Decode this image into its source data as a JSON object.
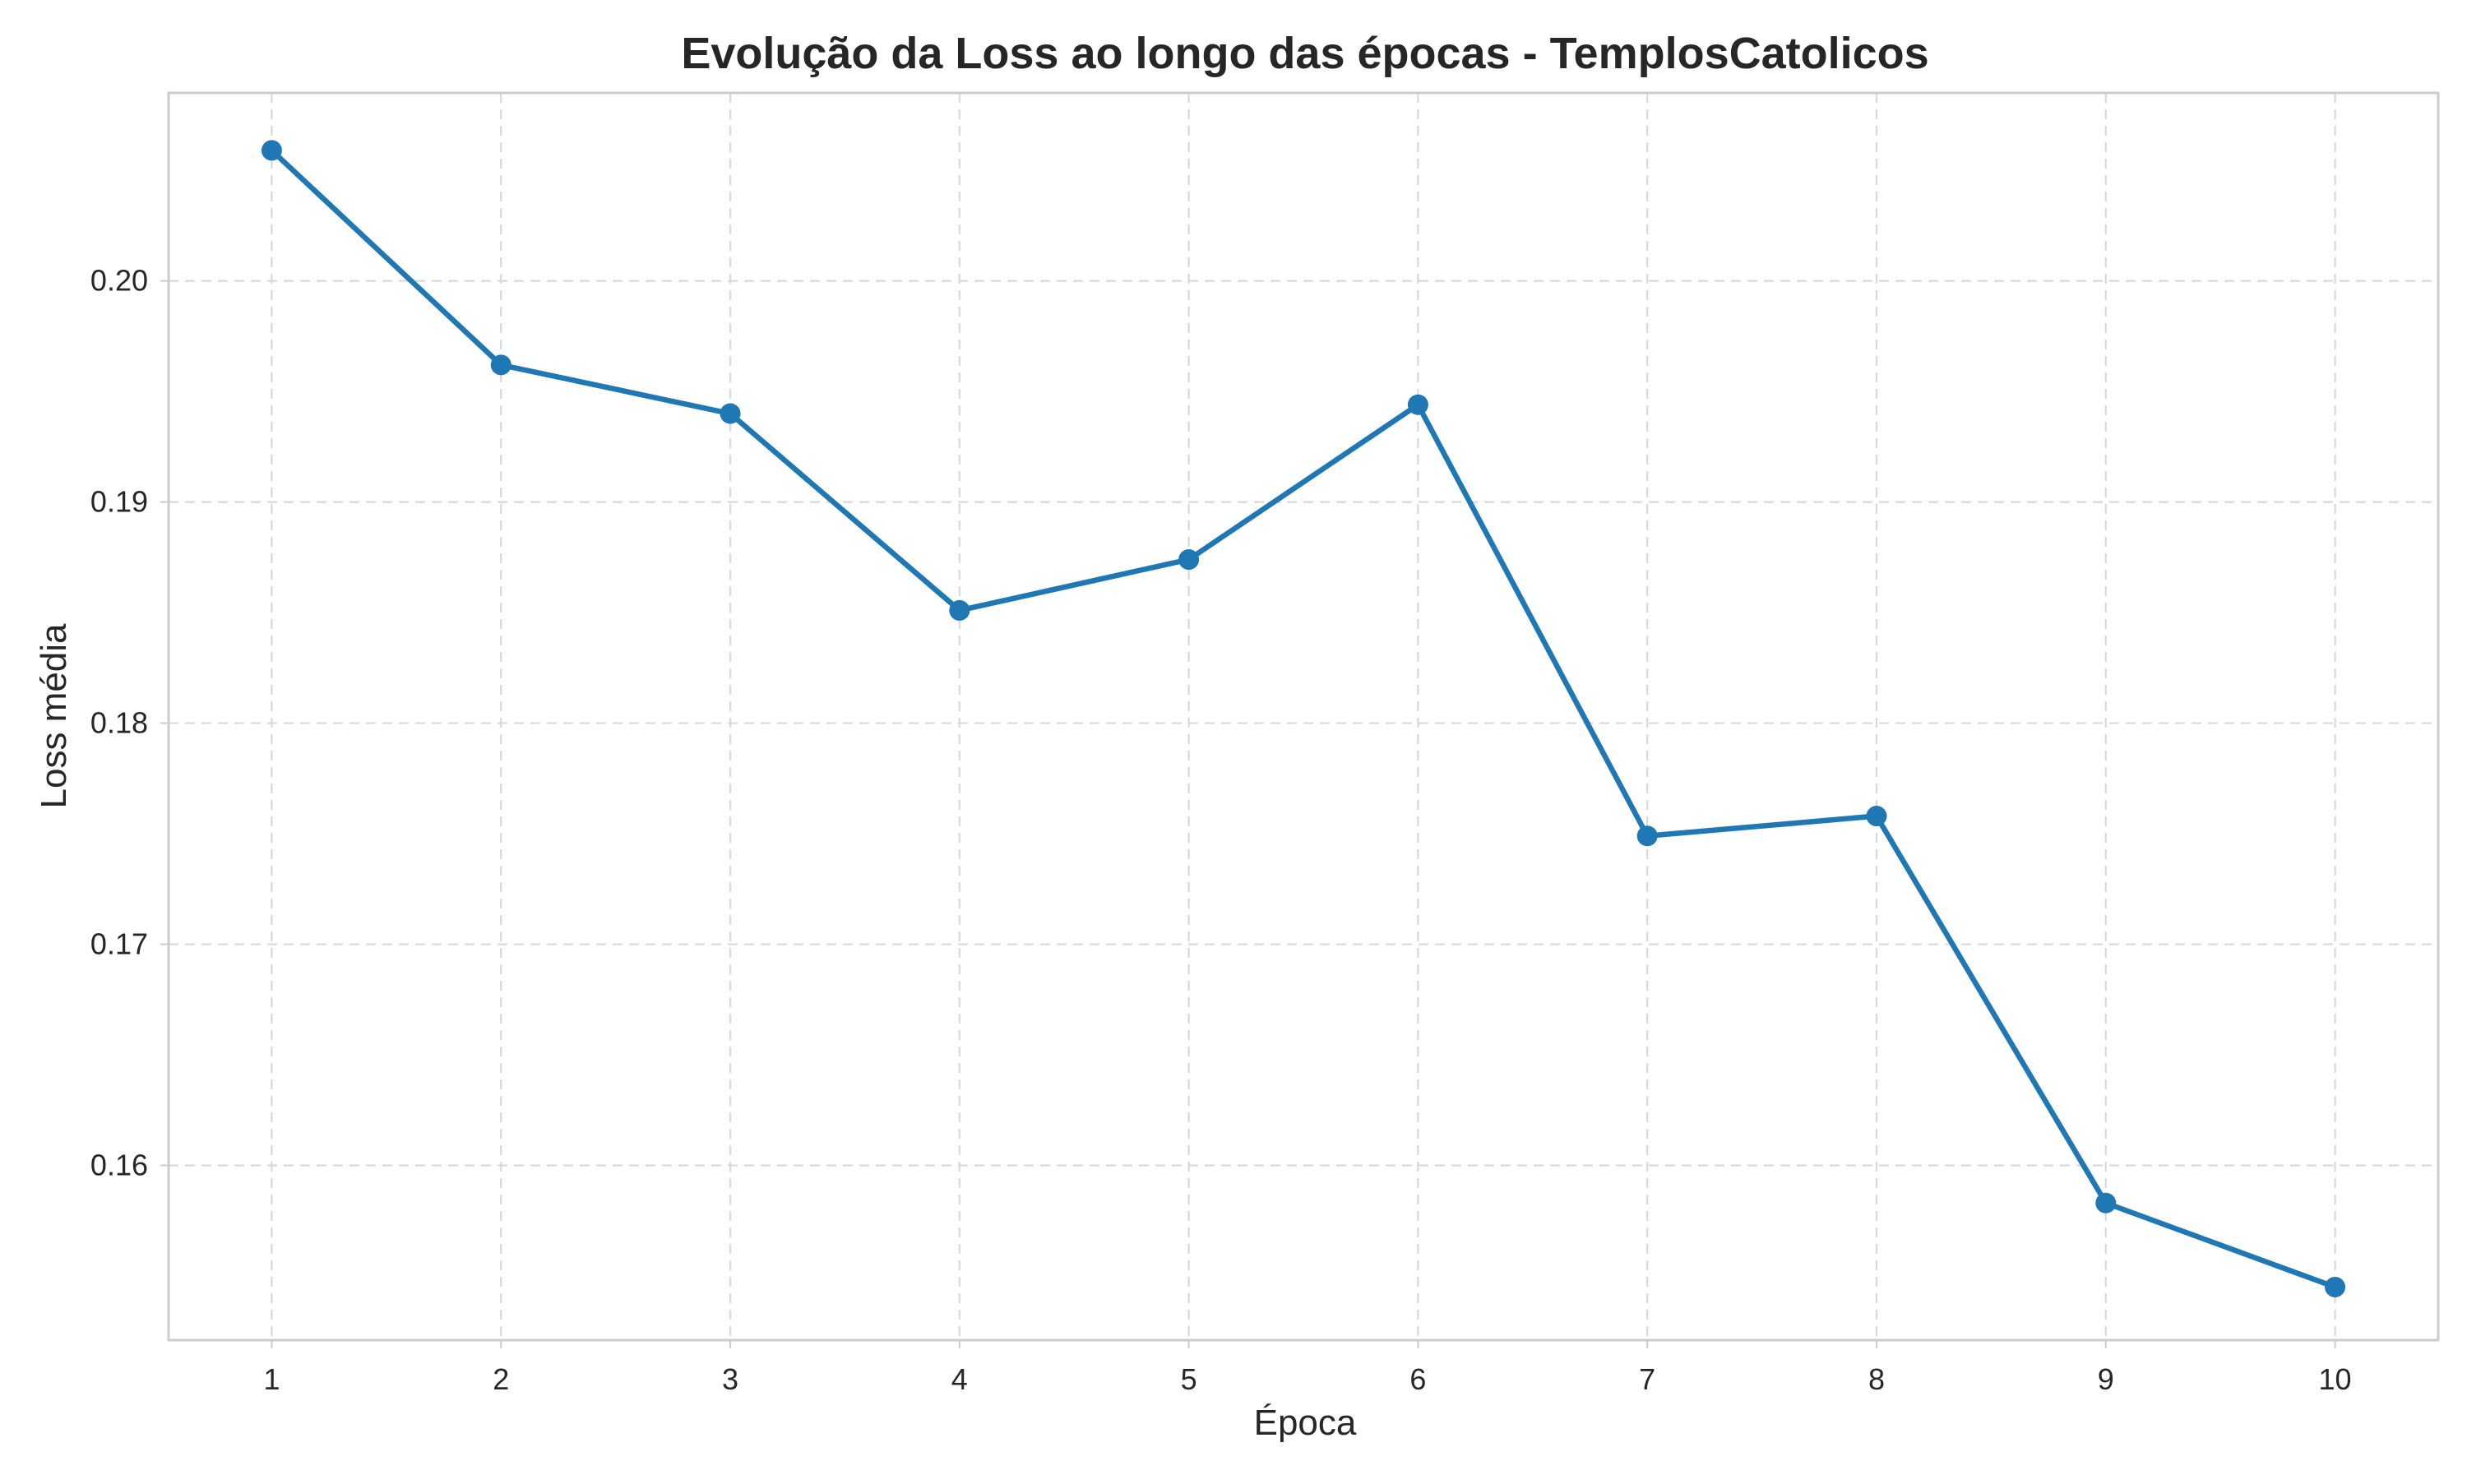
{
  "chart_data": {
    "type": "line",
    "title": "Evolução da Loss ao longo das épocas - TemplosCatolicos",
    "xlabel": "Época",
    "ylabel": "Loss média",
    "x": [
      1,
      2,
      3,
      4,
      5,
      6,
      7,
      8,
      9,
      10
    ],
    "series": [
      {
        "values": [
          0.2059,
          0.1962,
          0.194,
          0.1851,
          0.1874,
          0.1944,
          0.1749,
          0.1758,
          0.1583,
          0.1545
        ],
        "color": "#1f77b4",
        "marker": "circle"
      }
    ],
    "xticks": [
      "1",
      "2",
      "3",
      "4",
      "5",
      "6",
      "7",
      "8",
      "9",
      "10"
    ],
    "yticks": [
      "0.16",
      "0.17",
      "0.18",
      "0.19",
      "0.20"
    ],
    "ytick_values": [
      0.16,
      0.17,
      0.18,
      0.19,
      0.2
    ],
    "xlim": [
      0.55,
      10.45
    ],
    "ylim": [
      0.1521,
      0.2085
    ],
    "grid": true,
    "grid_style": "dashed",
    "legend": "none"
  }
}
